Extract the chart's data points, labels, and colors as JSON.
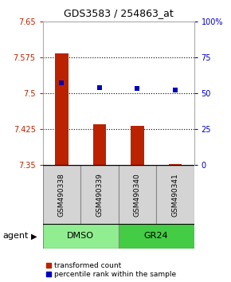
{
  "title": "GDS3583 / 254863_at",
  "samples": [
    "GSM490338",
    "GSM490339",
    "GSM490340",
    "GSM490341"
  ],
  "bar_values": [
    7.582,
    7.435,
    7.432,
    7.352
  ],
  "bar_baseline": 7.35,
  "percentile_values": [
    57,
    54,
    53,
    52
  ],
  "ylim_left": [
    7.35,
    7.65
  ],
  "ylim_right": [
    0,
    100
  ],
  "yticks_left": [
    7.35,
    7.425,
    7.5,
    7.575,
    7.65
  ],
  "yticks_right": [
    0,
    25,
    50,
    75,
    100
  ],
  "ytick_labels_left": [
    "7.35",
    "7.425",
    "7.5",
    "7.575",
    "7.65"
  ],
  "ytick_labels_right": [
    "0",
    "25",
    "50",
    "75",
    "100%"
  ],
  "bar_color": "#bb2200",
  "square_color": "#0000bb",
  "grid_color": "#000000",
  "group_labels": [
    "DMSO",
    "GR24"
  ],
  "group_colors_dmso": "#90ee90",
  "group_colors_gr24": "#44cc44",
  "agent_label": "agent",
  "legend_items": [
    "transformed count",
    "percentile rank within the sample"
  ],
  "legend_colors": [
    "#bb2200",
    "#0000bb"
  ],
  "plot_bg": "#ffffff",
  "bar_width": 0.35,
  "dotted_yticks": [
    7.425,
    7.5,
    7.575
  ]
}
